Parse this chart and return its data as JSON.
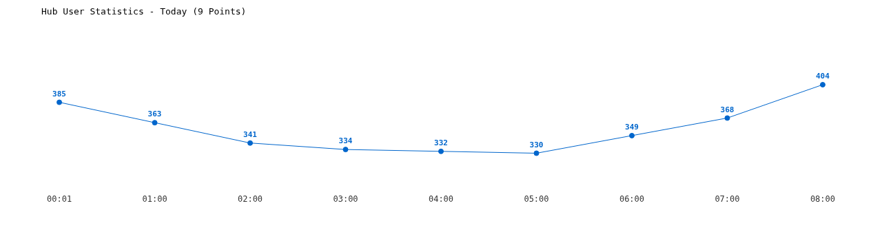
{
  "chart_data": {
    "type": "line",
    "title": "Hub User Statistics - Today (9 Points)",
    "categories": [
      "00:01",
      "01:00",
      "02:00",
      "03:00",
      "04:00",
      "05:00",
      "06:00",
      "07:00",
      "08:00"
    ],
    "series": [
      {
        "color": "#0066cc",
        "values": [
          385,
          363,
          341,
          334,
          332,
          330,
          349,
          368,
          404
        ]
      }
    ],
    "data_labels": true,
    "grid": false,
    "legend": false,
    "marker": "circle",
    "line_style": "solid",
    "tick_labels": "x"
  }
}
